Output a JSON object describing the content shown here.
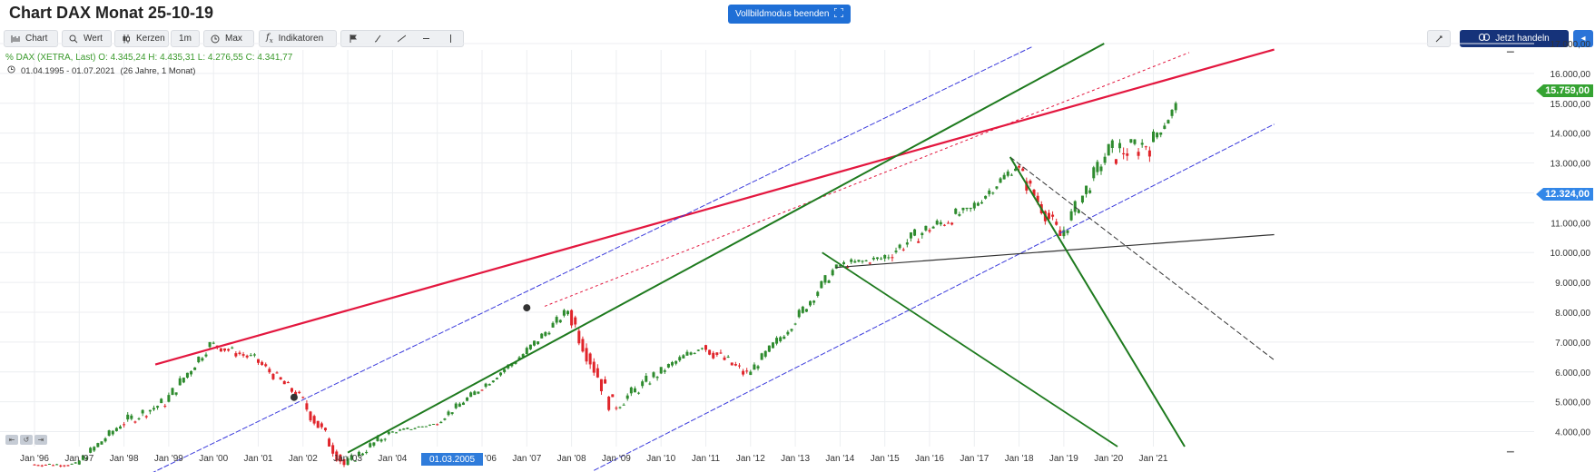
{
  "header": {
    "title": "Chart DAX Monat 25-10-19",
    "fullscreen_button": "Vollbildmodus beenden"
  },
  "toolbar": {
    "chart": "Chart",
    "value": "Wert",
    "candles": "Kerzen",
    "interval": "1m",
    "range": "Max",
    "indicators": "Indikatoren",
    "trade": "Jetzt handeln"
  },
  "legend": {
    "quote": "% DAX (XETRA, Last)  O: 4.345,24  H: 4.435,31  L: 4.276,55  C: 4.341,77",
    "range": "01.04.1995 - 01.07.2021",
    "range_note": "(26 Jahre, 1 Monat)"
  },
  "y_axis_labels": [
    "17.000,00",
    "16.000,00",
    "15.000,00",
    "14.000,00",
    "13.000,00",
    "12.000,00",
    "11.000,00",
    "10.000,00",
    "9.000,00",
    "8.000,00",
    "7.000,00",
    "6.000,00",
    "5.000,00",
    "4.000,00"
  ],
  "x_axis_labels": [
    "Jan '96",
    "Jan '97",
    "Jan '98",
    "Jan '99",
    "Jan '00",
    "Jan '01",
    "Jan '02",
    "Jan '03",
    "Jan '04",
    "Jan '05",
    "Jan '06",
    "Jan '07",
    "Jan '08",
    "Jan '09",
    "Jan '10",
    "Jan '11",
    "Jan '12",
    "Jan '13",
    "Jan '14",
    "Jan '15",
    "Jan '16",
    "Jan '17",
    "Jan '18",
    "Jan '19",
    "Jan '20",
    "Jan '21"
  ],
  "price_tags": {
    "last": "15.759,00",
    "mark": "12.324,00"
  },
  "date_marker": "01.03.2005",
  "colors": {
    "up": "#2e8b2e",
    "down": "#e0242a",
    "accent": "#1f6fd6",
    "trend_red": "#e3173f",
    "trend_green": "#1e7a1e",
    "channel_blue": "#3b3bdc"
  },
  "chart_data": {
    "type": "candlestick",
    "title": "Chart DAX Monat 25-10-19",
    "instrument": "DAX (XETRA, Last)",
    "ylim": [
      3500,
      17000
    ],
    "x_start_year": 1995.6,
    "x_end_year": 2022.7,
    "years": [
      1996,
      1997,
      1998,
      1999,
      2000,
      2001,
      2002,
      2003,
      2004,
      2005,
      2006,
      2007,
      2008,
      2009,
      2010,
      2011,
      2012,
      2013,
      2014,
      2015,
      2016,
      2017,
      2018,
      2019,
      2020,
      2021
    ],
    "year_close": [
      2900,
      4250,
      5000,
      6950,
      6430,
      5160,
      2890,
      3970,
      4250,
      5400,
      6600,
      8070,
      4800,
      5950,
      6900,
      5900,
      7600,
      9550,
      9800,
      10750,
      11480,
      12900,
      10550,
      13250,
      13700,
      15700
    ],
    "year_high": [
      3000,
      4400,
      6200,
      7000,
      8100,
      6800,
      5500,
      4000,
      4260,
      5460,
      6650,
      8150,
      8100,
      6100,
      7150,
      7600,
      7700,
      9600,
      10100,
      12400,
      11500,
      13500,
      13600,
      13500,
      13800,
      15810
    ],
    "year_low": [
      2200,
      2800,
      3900,
      4700,
      6300,
      5000,
      2600,
      2200,
      3620,
      4150,
      5250,
      6450,
      4100,
      3600,
      5450,
      4950,
      5900,
      7500,
      8350,
      9300,
      8700,
      11400,
      10300,
      10250,
      8300,
      13300
    ],
    "last_price": 15759,
    "mark_price": 12324
  }
}
